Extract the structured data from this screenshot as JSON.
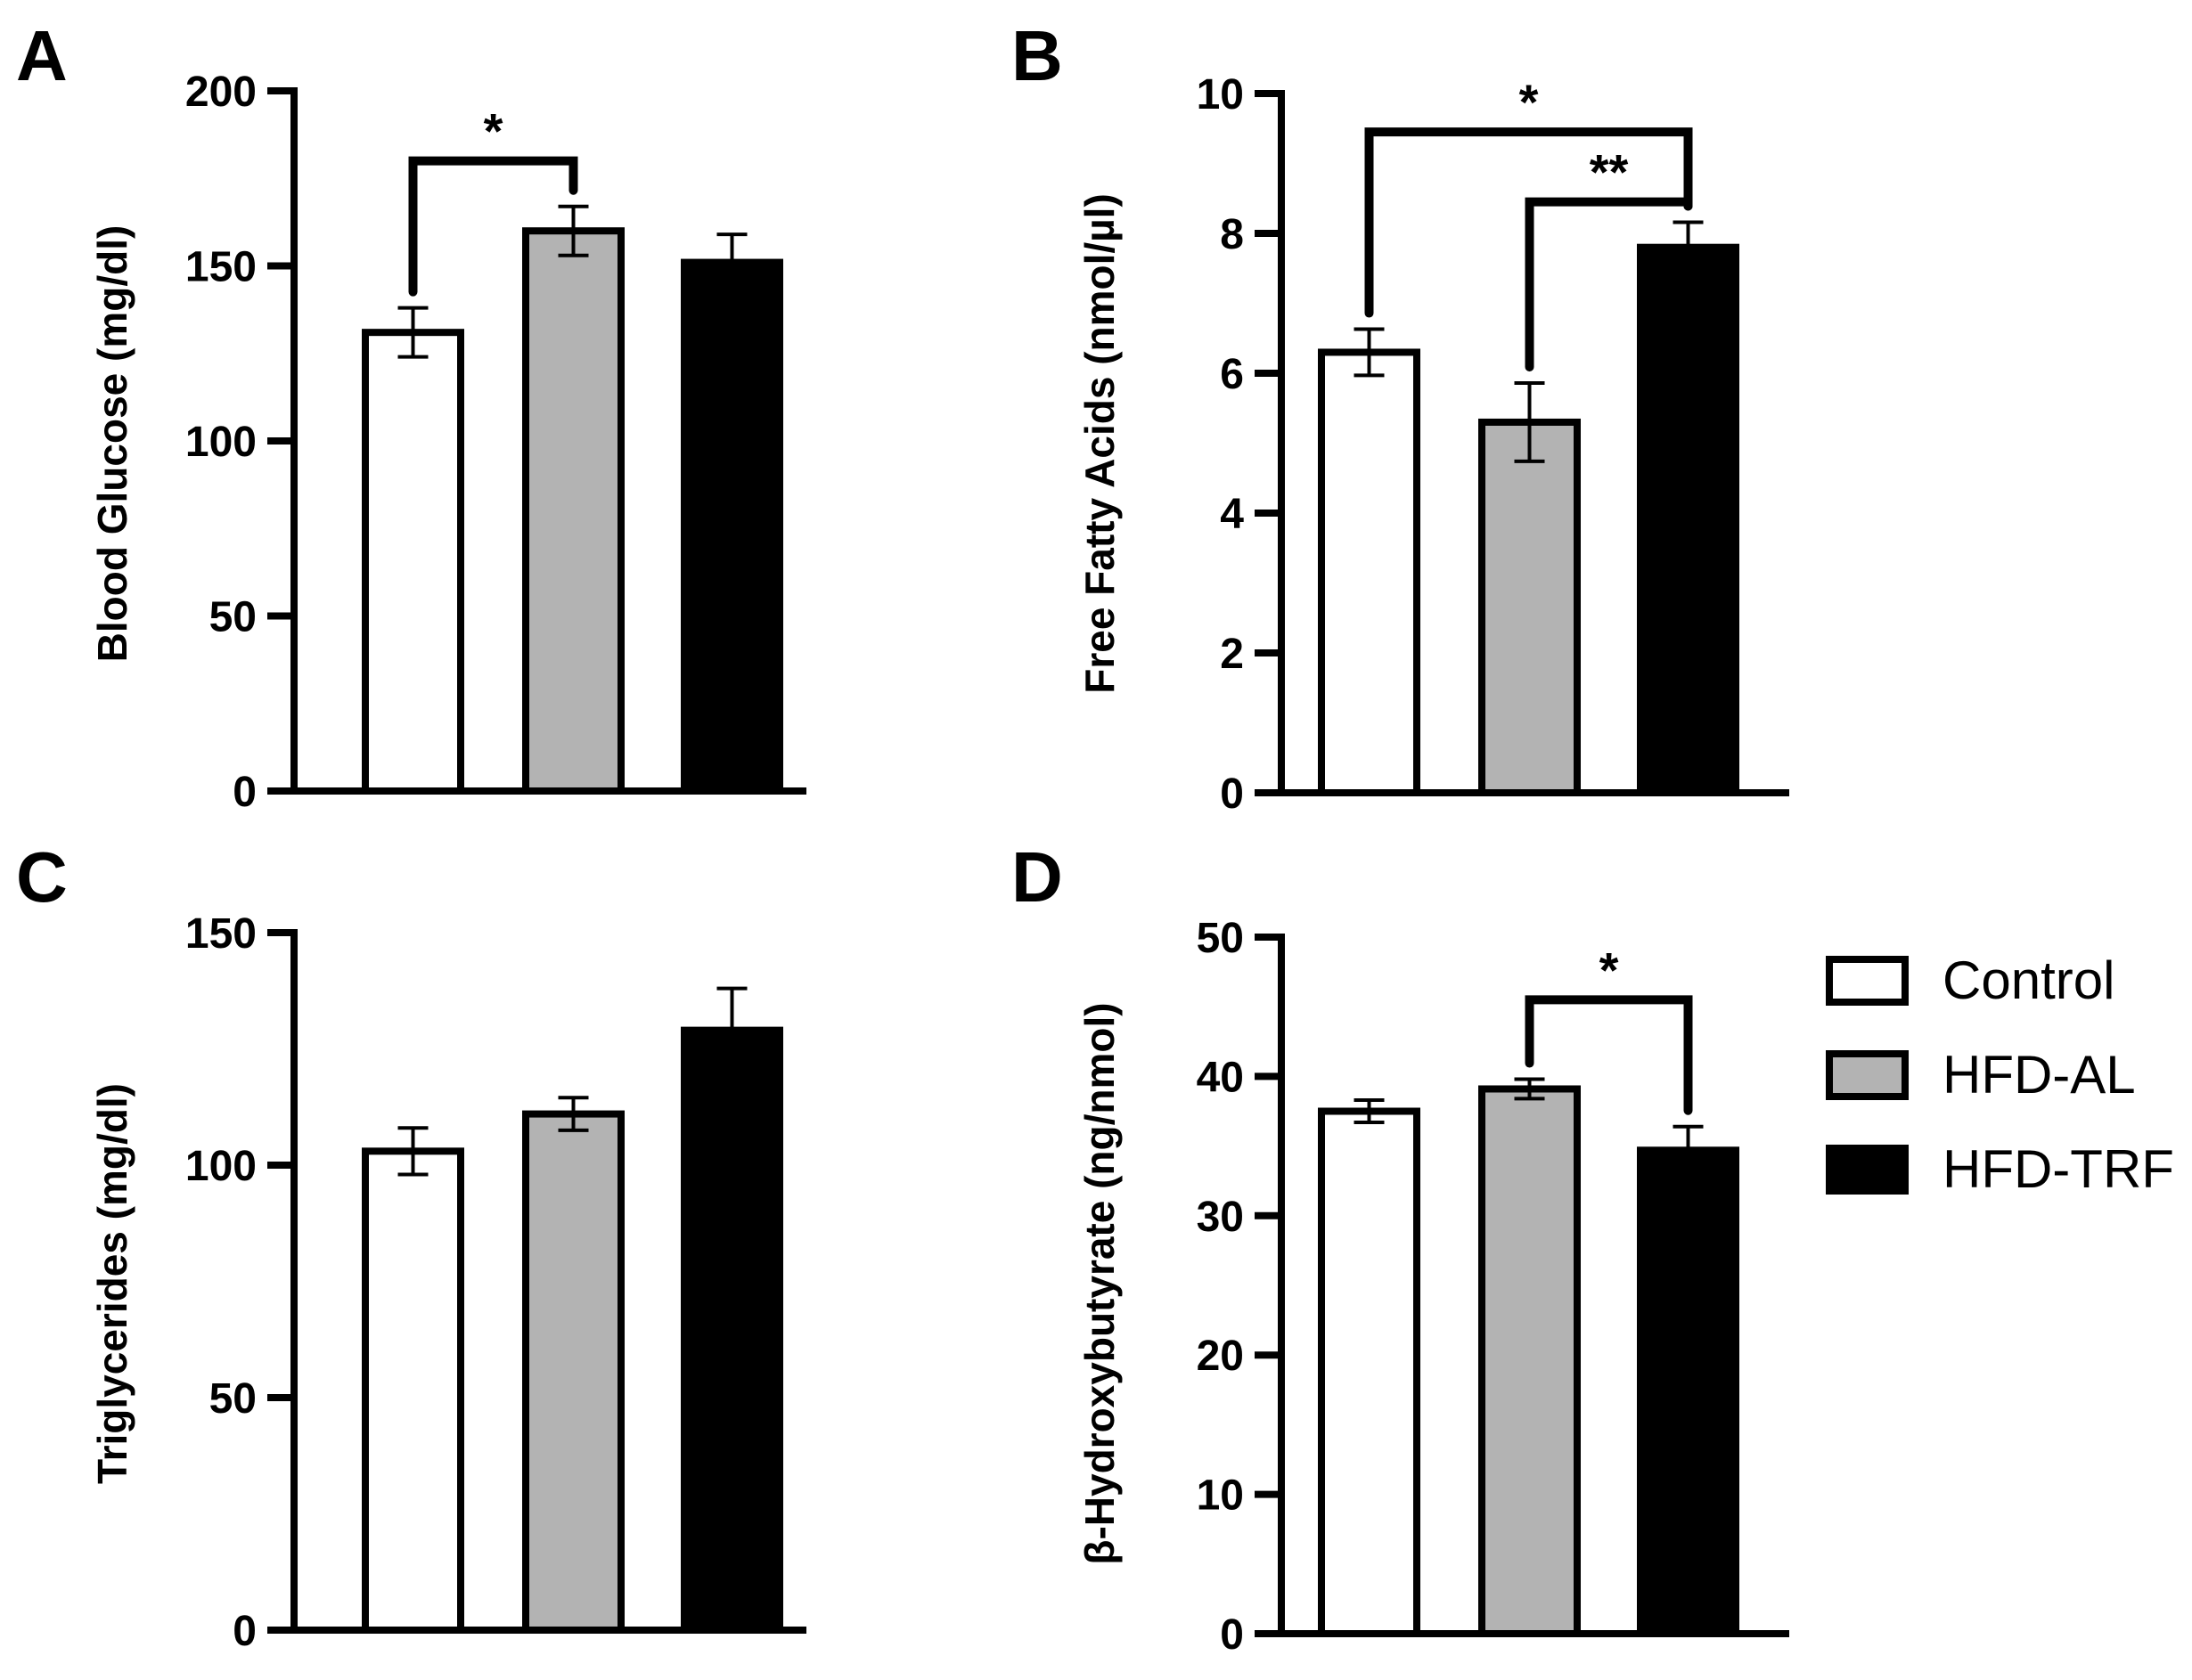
{
  "legend": [
    {
      "label": "Control",
      "color": "#ffffff"
    },
    {
      "label": "HFD-AL",
      "color": "#b3b3b3"
    },
    {
      "label": "HFD-TRF",
      "color": "#000000"
    }
  ],
  "chart_data": [
    {
      "panel": "A",
      "type": "bar",
      "categories": [
        "Control",
        "HFD-AL",
        "HFD-TRF"
      ],
      "values": [
        131,
        160,
        151
      ],
      "errors": [
        7,
        7,
        8
      ],
      "colors": [
        "#ffffff",
        "#b3b3b3",
        "#000000"
      ],
      "ylabel": "Blood Glucose (mg/dl)",
      "ylim": [
        0,
        200
      ],
      "yticks": [
        0,
        50,
        100,
        150,
        200
      ],
      "tick_labels": [
        "0",
        "50",
        "100",
        "150",
        "200"
      ],
      "significance": [
        {
          "from": 0,
          "to": 1,
          "label": "*",
          "y": 180
        }
      ]
    },
    {
      "panel": "B",
      "type": "bar",
      "categories": [
        "Control",
        "HFD-AL",
        "HFD-TRF"
      ],
      "values": [
        6.3,
        5.3,
        7.8
      ],
      "errors": [
        0.33,
        0.56,
        0.36
      ],
      "colors": [
        "#ffffff",
        "#b3b3b3",
        "#000000"
      ],
      "ylabel": "Free Fatty Acids (nmol/µl)",
      "ylim": [
        0,
        10
      ],
      "yticks": [
        0,
        2,
        4,
        6,
        8,
        10
      ],
      "tick_labels": [
        "0",
        "2",
        "4",
        "6",
        "8",
        "10"
      ],
      "significance": [
        {
          "from": 0,
          "to": 2,
          "label": "*",
          "y": 9.45
        },
        {
          "from": 1,
          "to": 2,
          "label": "**",
          "y": 8.45
        }
      ]
    },
    {
      "panel": "C",
      "type": "bar",
      "categories": [
        "Control",
        "HFD-AL",
        "HFD-TRF"
      ],
      "values": [
        103,
        111,
        129
      ],
      "errors": [
        5,
        3.5,
        9
      ],
      "colors": [
        "#ffffff",
        "#b3b3b3",
        "#000000"
      ],
      "ylabel": "Triglycerides (mg/dl)",
      "ylim": [
        0,
        150
      ],
      "yticks": [
        0,
        50,
        100,
        150
      ],
      "tick_labels": [
        "0",
        "50",
        "100",
        "150"
      ],
      "significance": []
    },
    {
      "panel": "D",
      "type": "bar",
      "categories": [
        "Control",
        "HFD-AL",
        "HFD-TRF"
      ],
      "values": [
        37.5,
        39.1,
        34.7
      ],
      "errors": [
        0.8,
        0.7,
        1.7
      ],
      "colors": [
        "#ffffff",
        "#b3b3b3",
        "#000000"
      ],
      "ylabel": "β-Hydroxybutyrate (ng/nmol)",
      "ylim": [
        0,
        50
      ],
      "yticks": [
        0,
        10,
        20,
        30,
        40,
        50
      ],
      "tick_labels": [
        "0",
        "10",
        "20",
        "30",
        "40",
        "50"
      ],
      "significance": [
        {
          "from": 1,
          "to": 2,
          "label": "*",
          "y": 45.5
        }
      ]
    }
  ]
}
